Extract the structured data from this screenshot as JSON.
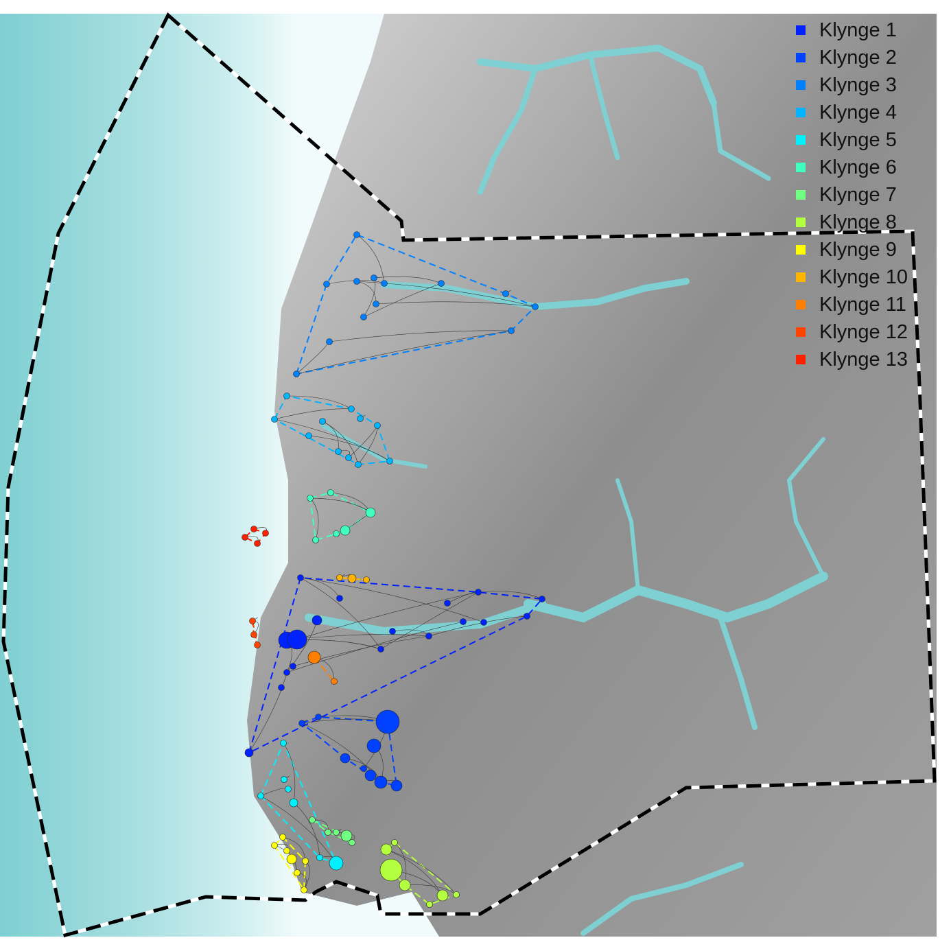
{
  "legend": {
    "items": [
      {
        "label": "Klynge 1",
        "color": "#0022ff"
      },
      {
        "label": "Klynge 2",
        "color": "#0040ff"
      },
      {
        "label": "Klynge 3",
        "color": "#0080ff"
      },
      {
        "label": "Klynge 4",
        "color": "#00b4ff"
      },
      {
        "label": "Klynge 5",
        "color": "#00f0ff"
      },
      {
        "label": "Klynge 6",
        "color": "#40ffc0"
      },
      {
        "label": "Klynge 7",
        "color": "#70ff80"
      },
      {
        "label": "Klynge 8",
        "color": "#b4ff40"
      },
      {
        "label": "Klynge 9",
        "color": "#ffff00"
      },
      {
        "label": "Klynge 10",
        "color": "#ffb400"
      },
      {
        "label": "Klynge 11",
        "color": "#ff8000"
      },
      {
        "label": "Klynge 12",
        "color": "#ff4400"
      },
      {
        "label": "Klynge 13",
        "color": "#ff2000"
      }
    ]
  },
  "colors": {
    "sea": "#8fd4d6",
    "land": "#a8a8a8",
    "boundary": "#000000"
  }
}
